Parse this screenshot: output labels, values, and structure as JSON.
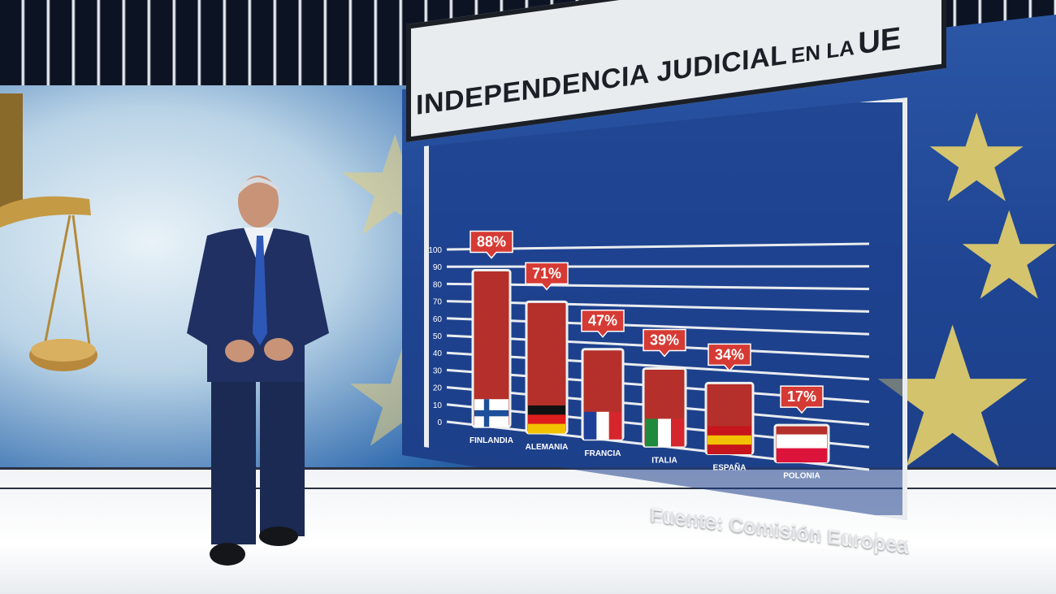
{
  "graphic": {
    "title_main": "INDEPENDENCIA JUDICIAL",
    "title_mid": "EN LA",
    "title_end": "UE",
    "source": "Fuente: Comisión Europea"
  },
  "colors": {
    "bar": "#b5302a",
    "bar_border": "#f0f0f0",
    "callout": "#d63a34",
    "panel_bg": "#1f4593",
    "grid": "#e9ecef"
  },
  "chart_data": {
    "type": "bar",
    "title": "INDEPENDENCIA JUDICIAL EN LA UE",
    "categories": [
      "FINLANDIA",
      "ALEMANIA",
      "FRANCIA",
      "ITALIA",
      "ESPAÑA",
      "POLONIA"
    ],
    "values": [
      88,
      71,
      47,
      39,
      34,
      17
    ],
    "value_labels": [
      "88%",
      "71%",
      "47%",
      "39%",
      "34%",
      "17%"
    ],
    "flags": [
      "finland-flag",
      "germany-flag",
      "france-flag",
      "italy-flag",
      "spain-flag",
      "poland-flag"
    ],
    "yticks": [
      "100",
      "90",
      "80",
      "70",
      "60",
      "50",
      "40",
      "30",
      "20",
      "10",
      "0"
    ],
    "ylim": [
      0,
      100
    ],
    "grid": true,
    "source": "Fuente: Comisión Europea"
  }
}
